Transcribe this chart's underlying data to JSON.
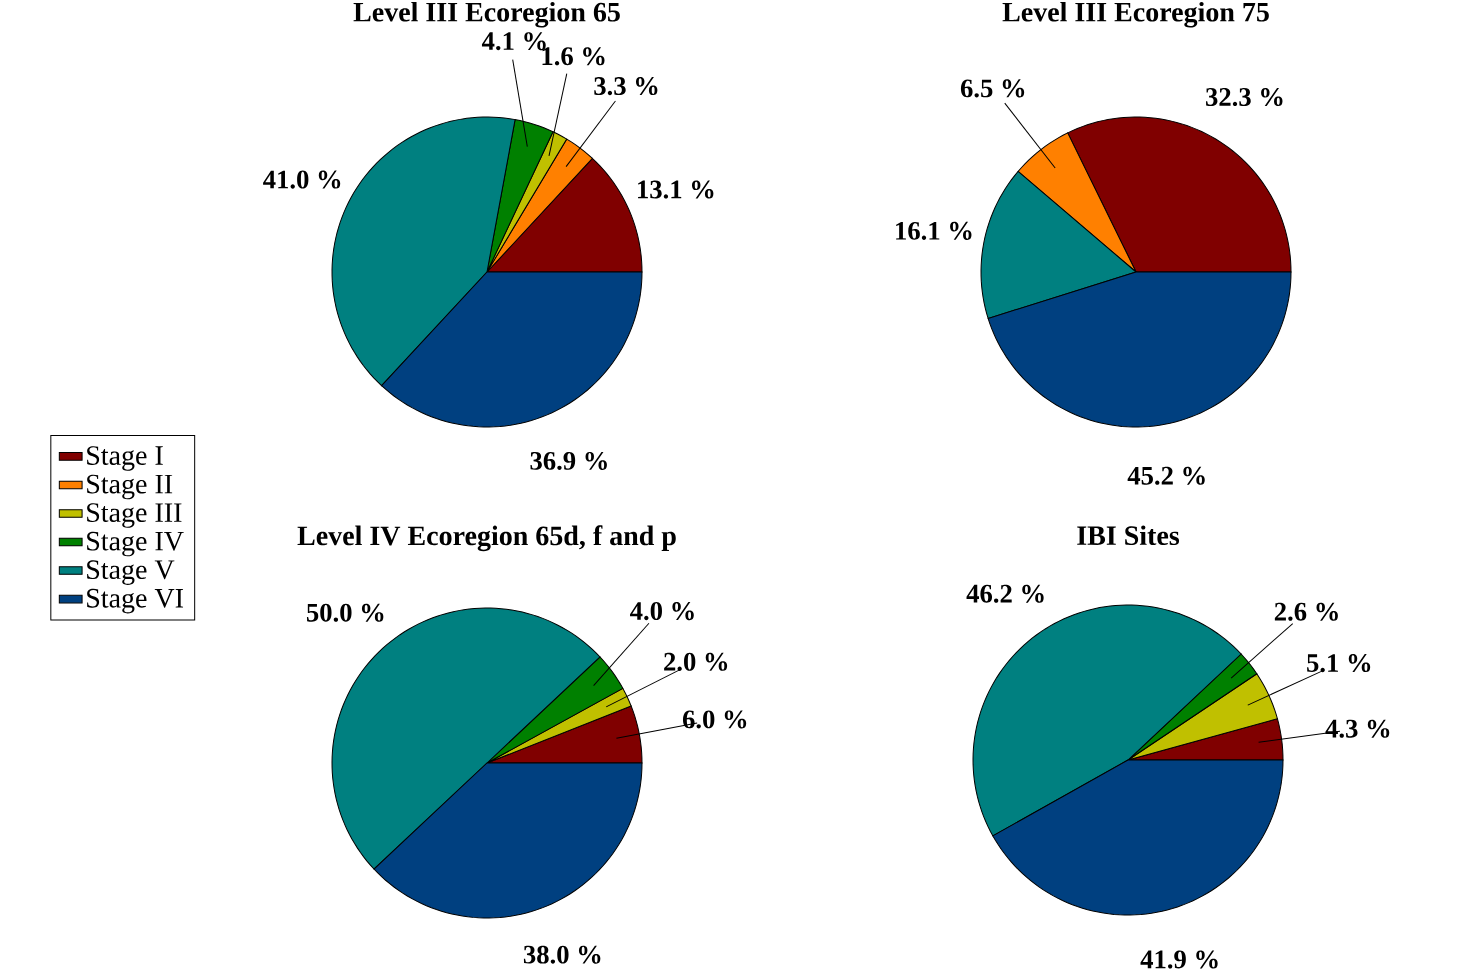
{
  "chart_data": [
    {
      "type": "pie",
      "title": "Level III Ecoregion 65",
      "categories": [
        "Stage I",
        "Stage II",
        "Stage III",
        "Stage IV",
        "Stage V",
        "Stage VI"
      ],
      "values": [
        13.1,
        3.3,
        1.6,
        4.1,
        41.0,
        36.9
      ],
      "colors": [
        "#800000",
        "#ff8000",
        "#c0c000",
        "#008000",
        "#008080",
        "#004080"
      ],
      "value_labels": [
        "13.1 %",
        "3.3 %",
        "1.6 %",
        "4.1 %",
        "41.0 %",
        "36.9 %"
      ],
      "legend": "left"
    },
    {
      "type": "pie",
      "title": "Level III Ecoregion 75",
      "categories": [
        null,
        null,
        null,
        null
      ],
      "values": [
        32.3,
        6.5,
        16.1,
        45.2
      ],
      "colors": [
        "#800000",
        "#ff8000",
        "#008080",
        "#004080"
      ],
      "value_labels": [
        "32.3 %",
        "6.5 %",
        "16.1 %",
        "45.2 %"
      ]
    },
    {
      "type": "pie",
      "title": "Level IV Ecoregion 65d, f and p",
      "categories": [
        null,
        null,
        null,
        null,
        null
      ],
      "values": [
        6.0,
        2.0,
        4.0,
        50.0,
        38.0
      ],
      "colors": [
        "#800000",
        "#c0c000",
        "#008000",
        "#008080",
        "#004080"
      ],
      "value_labels": [
        "6.0 %",
        "2.0 %",
        "4.0 %",
        "50.0 %",
        "38.0 %"
      ]
    },
    {
      "type": "pie",
      "title": "IBI Sites",
      "categories": [
        null,
        null,
        null,
        null,
        null
      ],
      "values": [
        4.3,
        5.1,
        2.6,
        46.2,
        41.9
      ],
      "colors": [
        "#800000",
        "#c0c000",
        "#008000",
        "#008080",
        "#004080"
      ],
      "value_labels": [
        "4.3 %",
        "5.1 %",
        "2.6 %",
        "46.2 %",
        "41.9 %"
      ]
    }
  ]
}
